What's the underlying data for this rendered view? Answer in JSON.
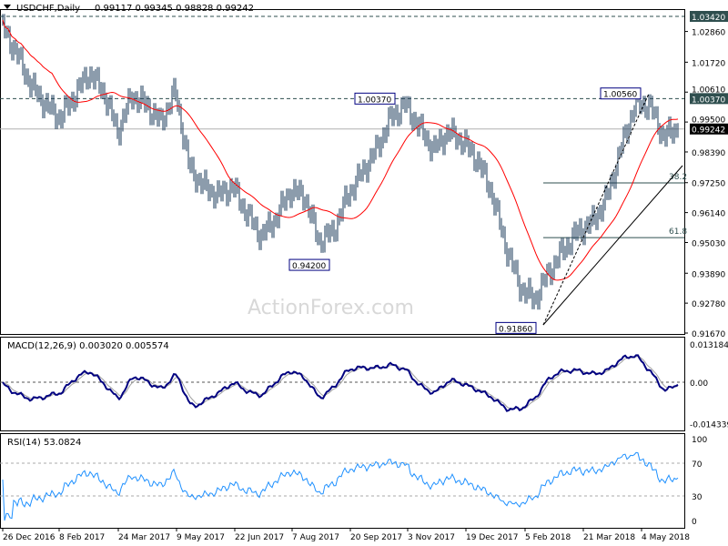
{
  "header": {
    "symbol_label": "USDCHF,Daily",
    "ohlc": "0.99117 0.99345 0.98828 0.99242"
  },
  "watermark": "ActionForex.com",
  "colors": {
    "bars": "#1a3a5a",
    "ma": "#ff0000",
    "macd": "#000080",
    "macd_signal": "#a0a0a0",
    "rsi": "#1e90ff",
    "label_box": "#000080",
    "axis_box": "#2f4f4f"
  },
  "chart_data": [
    {
      "type": "ohlc",
      "title": "USDCHF,Daily",
      "y_ticks": [
        "1.02860",
        "1.01720",
        "1.00610",
        "0.99500",
        "0.98390",
        "0.97250",
        "0.96140",
        "0.95030",
        "0.93890",
        "0.92780",
        "0.91670"
      ],
      "ylim": [
        0.9167,
        1.0342
      ],
      "x_tick_labels": [
        "26 Dec 2016",
        "8 Feb 2017",
        "24 Mar 2017",
        "9 May 2017",
        "22 Jun 2017",
        "7 Aug 2017",
        "20 Sep 2017",
        "3 Nov 2017",
        "19 Dec 2017",
        "5 Feb 2018",
        "21 Mar 2018",
        "4 May 2018"
      ],
      "approx_closes": [
        1.0302,
        1.02,
        1.0082,
        1.0014,
        0.9964,
        1.0048,
        1.0133,
        1.0065,
        0.9913,
        1.0048,
        1.0014,
        0.9947,
        1.0065,
        0.9778,
        0.9711,
        0.9677,
        0.9711,
        0.9609,
        0.9525,
        0.9592,
        0.9694,
        0.9677,
        0.9508,
        0.9542,
        0.9677,
        0.9761,
        0.9846,
        0.9964,
        1.0014,
        0.993,
        0.9846,
        0.9913,
        0.9879,
        0.9812,
        0.9694,
        0.9491,
        0.9339,
        0.9289,
        0.939,
        0.9474,
        0.9542,
        0.9576,
        0.966,
        0.9846,
        1.0014,
        1.0014,
        0.9896,
        0.99242
      ],
      "horizontal_levels": [
        {
          "value": 1.0342,
          "label": "1.03420",
          "style": "dashed"
        },
        {
          "value": 1.0037,
          "label": "1.00370",
          "style": "dashed"
        },
        {
          "value": 0.99242,
          "label": "0.99242",
          "style": "current"
        }
      ],
      "fibonacci": [
        {
          "label": "38.2",
          "value": 0.9724
        },
        {
          "label": "61.8",
          "value": 0.9521
        }
      ],
      "annotations": [
        {
          "label": "1.00370",
          "value": 1.0037
        },
        {
          "label": "0.94200",
          "value": 0.942
        },
        {
          "label": "0.91860",
          "value": 0.9186
        },
        {
          "label": "1.00560",
          "value": 1.0056
        }
      ]
    },
    {
      "type": "line",
      "title": "MACD(12,26,9) 0.003020 0.005574",
      "y_ticks": [
        "0.013184",
        "0.00",
        "-0.014339"
      ],
      "ylim": [
        -0.014339,
        0.013184
      ]
    },
    {
      "type": "line",
      "title": "RSI(14) 53.0824",
      "y_ticks": [
        "100",
        "70",
        "30",
        "0"
      ],
      "ylim": [
        0,
        100
      ],
      "levels": [
        70,
        30
      ]
    }
  ]
}
